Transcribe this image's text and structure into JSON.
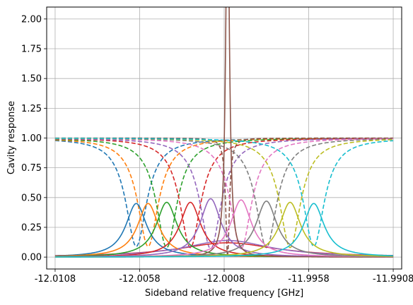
{
  "chart_data": {
    "type": "line",
    "title": "",
    "xlabel": "Sideband relative frequency [GHz]",
    "ylabel": "Cavity response",
    "xlim": [
      -12.0113,
      -11.9903
    ],
    "ylim": [
      -0.1,
      2.1
    ],
    "grid": true,
    "legend": "none",
    "x_ticks": [
      {
        "value": -12.0108,
        "label": "-12.0108"
      },
      {
        "value": -12.0058,
        "label": "-12.0058"
      },
      {
        "value": -12.0008,
        "label": "-12.0008"
      },
      {
        "value": -11.9958,
        "label": "-11.9958"
      },
      {
        "value": -11.9908,
        "label": "-11.9908"
      }
    ],
    "y_ticks": [
      {
        "value": 0.0,
        "label": "0.00"
      },
      {
        "value": 0.25,
        "label": "0.25"
      },
      {
        "value": 0.5,
        "label": "0.50"
      },
      {
        "value": 0.75,
        "label": "0.75"
      },
      {
        "value": 1.0,
        "label": "1.00"
      },
      {
        "value": 1.25,
        "label": "1.25"
      },
      {
        "value": 1.5,
        "label": "1.50"
      },
      {
        "value": 1.75,
        "label": "1.75"
      },
      {
        "value": 2.0,
        "label": "2.00"
      }
    ],
    "x_range": [
      -12.0108,
      -11.9908
    ],
    "series_model": "Solid lines: Lorentzian transmission peaks of height `peak` and half-width `width` (GHz) centred at `center`. Dashed lines: reflection dips 1 - peak_dip * L(x), same center and width.",
    "series": [
      {
        "color": "#1f77b4",
        "center": -12.006,
        "width": 0.00075,
        "peak": 0.45,
        "dip_depth": 0.91
      },
      {
        "color": "#ff7f0e",
        "center": -12.0053,
        "width": 0.00075,
        "peak": 0.45,
        "dip_depth": 0.91
      },
      {
        "color": "#2ca02c",
        "center": -12.0042,
        "width": 0.00075,
        "peak": 0.46,
        "dip_depth": 0.92
      },
      {
        "color": "#d62728",
        "center": -12.0028,
        "width": 0.00075,
        "peak": 0.46,
        "dip_depth": 0.92
      },
      {
        "color": "#9467bd",
        "center": -12.0016,
        "width": 0.00075,
        "peak": 0.49,
        "dip_depth": 0.93
      },
      {
        "color": "#8c564b",
        "center": -12.0006,
        "width": 0.00013,
        "peak": 3.2,
        "dip_depth": 1.0
      },
      {
        "color": "#e377c2",
        "center": -11.9998,
        "width": 0.00075,
        "peak": 0.48,
        "dip_depth": 0.93
      },
      {
        "color": "#7f7f7f",
        "center": -11.9983,
        "width": 0.00075,
        "peak": 0.47,
        "dip_depth": 0.92
      },
      {
        "color": "#bcbd22",
        "center": -11.9969,
        "width": 0.00075,
        "peak": 0.46,
        "dip_depth": 0.92
      },
      {
        "color": "#17becf",
        "center": -11.9955,
        "width": 0.00075,
        "peak": 0.45,
        "dip_depth": 0.91
      }
    ],
    "extra_curves": [
      {
        "color": "#d62728",
        "center": -12.0006,
        "width": 0.0035,
        "peak": 0.12,
        "style": "solid"
      },
      {
        "color": "#9467bd",
        "center": -12.0006,
        "width": 0.003,
        "peak": 0.14,
        "style": "solid"
      }
    ]
  }
}
